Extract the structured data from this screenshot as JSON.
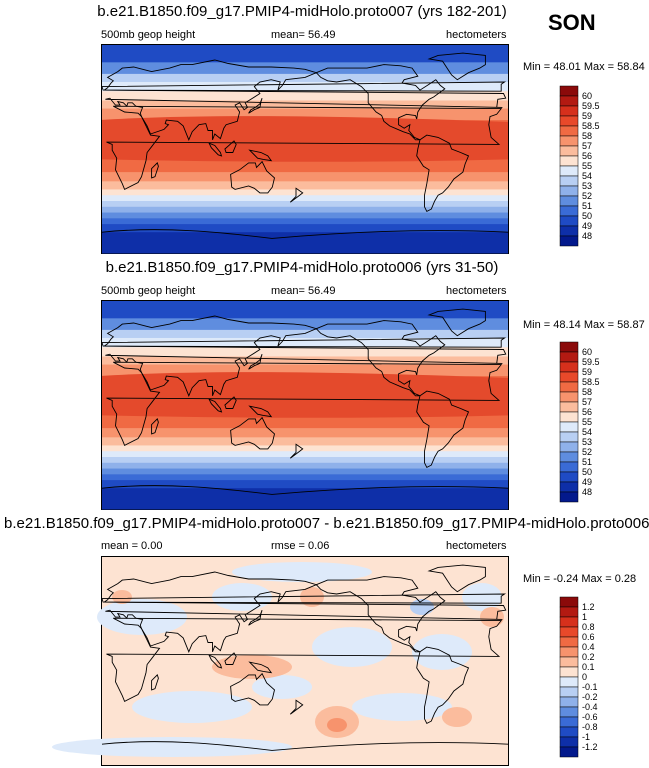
{
  "season": "SON",
  "panels": [
    {
      "title": "b.e21.B1850.f09_g17.PMIP4-midHolo.proto007 (yrs 182-201)",
      "left_label": "500mb geop height",
      "center_label": "mean=  56.49",
      "right_label": "hectometers",
      "minmax": "Min = 48.01 Max = 58.84"
    },
    {
      "title": "b.e21.B1850.f09_g17.PMIP4-midHolo.proto006 (yrs 31-50)",
      "left_label": "500mb geop height",
      "center_label": "mean=  56.49",
      "right_label": "hectometers",
      "minmax": "Min =  48.14 Max = 58.87"
    },
    {
      "title": "b.e21.B1850.f09_g17.PMIP4-midHolo.proto007 - b.e21.B1850.f09_g17.PMIP4-midHolo.proto006",
      "left_label": "mean =  0.00",
      "center_label": "rmse =  0.06",
      "right_label": "hectometers",
      "minmax": "Min = -0.24 Max =  0.28"
    }
  ],
  "chart_data": [
    {
      "type": "heatmap",
      "title": "b.e21.B1850.f09_g17.PMIP4-midHolo.proto007 (yrs 182-201)",
      "variable": "500mb geop height",
      "units": "hectometers",
      "mean": 56.49,
      "min": 48.01,
      "max": 58.84,
      "colorbar_levels": [
        "60",
        "59.5",
        "59",
        "58.5",
        "58",
        "57",
        "56",
        "55",
        "54",
        "53",
        "52",
        "51",
        "50",
        "49",
        "48"
      ],
      "colorbar_colors": [
        "#8b0a0a",
        "#b31a12",
        "#d6301c",
        "#e8492a",
        "#f06a43",
        "#f7936d",
        "#fbbc9d",
        "#fde3d2",
        "#deeafa",
        "#b8cff3",
        "#8fb1ea",
        "#5f8ddf",
        "#3a6bd6",
        "#1f4bc4",
        "#0e2fa8",
        "#03198c"
      ],
      "pattern": "zonal"
    },
    {
      "type": "heatmap",
      "title": "b.e21.B1850.f09_g17.PMIP4-midHolo.proto006 (yrs 31-50)",
      "variable": "500mb geop height",
      "units": "hectometers",
      "mean": 56.49,
      "min": 48.14,
      "max": 58.87,
      "colorbar_levels": [
        "60",
        "59.5",
        "59",
        "58.5",
        "58",
        "57",
        "56",
        "55",
        "54",
        "53",
        "52",
        "51",
        "50",
        "49",
        "48"
      ],
      "colorbar_colors": [
        "#8b0a0a",
        "#b31a12",
        "#d6301c",
        "#e8492a",
        "#f06a43",
        "#f7936d",
        "#fbbc9d",
        "#fde3d2",
        "#deeafa",
        "#b8cff3",
        "#8fb1ea",
        "#5f8ddf",
        "#3a6bd6",
        "#1f4bc4",
        "#0e2fa8",
        "#03198c"
      ],
      "pattern": "zonal"
    },
    {
      "type": "heatmap",
      "title": "b.e21.B1850.f09_g17.PMIP4-midHolo.proto007 - b.e21.B1850.f09_g17.PMIP4-midHolo.proto006",
      "units": "hectometers",
      "mean": 0.0,
      "rmse": 0.06,
      "min": -0.24,
      "max": 0.28,
      "colorbar_levels": [
        "1.2",
        "1",
        "0.8",
        "0.6",
        "0.4",
        "0.2",
        "0.1",
        "0",
        "-0.1",
        "-0.2",
        "-0.4",
        "-0.6",
        "-0.8",
        "-1",
        "-1.2"
      ],
      "colorbar_colors": [
        "#8b0a0a",
        "#b31a12",
        "#d6301c",
        "#e8492a",
        "#f06a43",
        "#f7936d",
        "#fbbc9d",
        "#fde3d2",
        "#deeafa",
        "#b8cff3",
        "#8fb1ea",
        "#5f8ddf",
        "#3a6bd6",
        "#1f4bc4",
        "#0e2fa8",
        "#03198c"
      ],
      "pattern": "difference"
    }
  ]
}
